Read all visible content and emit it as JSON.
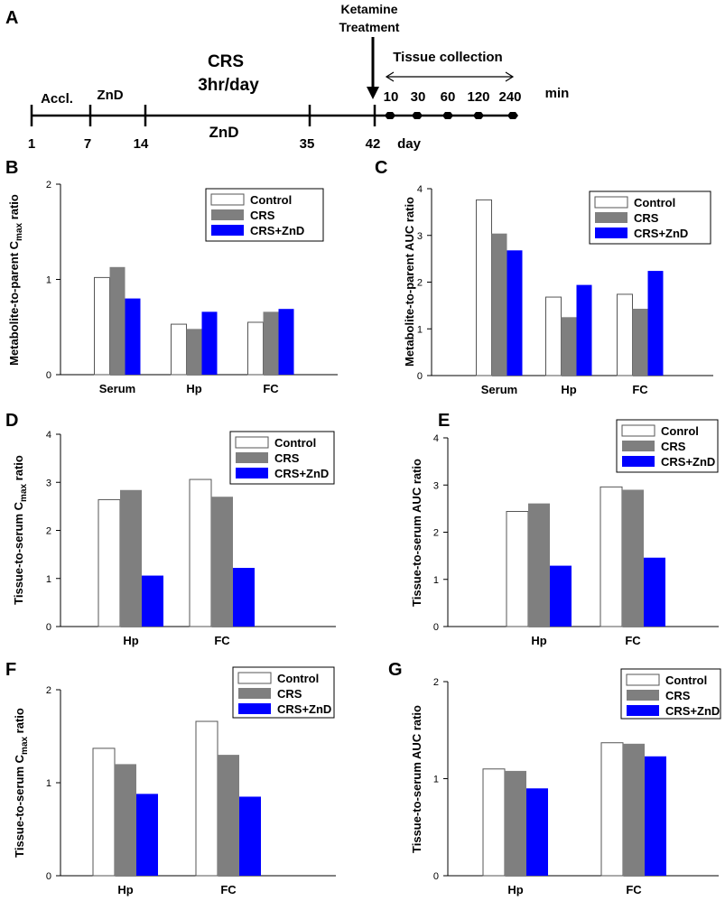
{
  "colors": {
    "control": "#ffffff",
    "crs": "#7f7f7f",
    "crs_znd": "#0000ff",
    "axis": "#000000"
  },
  "timeline": {
    "panel_label": "A",
    "days": [
      "1",
      "7",
      "14",
      "35",
      "42"
    ],
    "day_unit": "day",
    "accl_label": "Accl.",
    "znd_top_label": "ZnD",
    "crs_label_line1": "CRS",
    "crs_label_line2": "3hr/day",
    "znd_bottom_label": "ZnD",
    "ketamine_line1": "Ketamine",
    "ketamine_line2": "Treatment",
    "tissue_label": "Tissue collection",
    "times": [
      "10",
      "30",
      "60",
      "120",
      "240"
    ],
    "time_unit": "min"
  },
  "chart_data": [
    {
      "panel": "B",
      "type": "bar",
      "ylabel_pre": "Metabolite-to-parent C",
      "ylabel_sub": "max",
      "ylabel_post": " ratio",
      "ylim": [
        0,
        2
      ],
      "yticks": [
        "0",
        "1",
        "2"
      ],
      "categories": [
        "Serum",
        "Hp",
        "FC"
      ],
      "legend": [
        "Control",
        "CRS",
        "CRS+ZnD"
      ],
      "series": [
        {
          "name": "Control",
          "values": [
            1.02,
            0.53,
            0.55
          ]
        },
        {
          "name": "CRS",
          "values": [
            1.13,
            0.48,
            0.66
          ]
        },
        {
          "name": "CRS+ZnD",
          "values": [
            0.8,
            0.66,
            0.69
          ]
        }
      ]
    },
    {
      "panel": "C",
      "type": "bar",
      "ylabel_pre": "Metabolite-to-parent AUC ratio",
      "ylabel_sub": "",
      "ylabel_post": "",
      "ylim": [
        0,
        4
      ],
      "yticks": [
        "0",
        "1",
        "2",
        "3",
        "4"
      ],
      "categories": [
        "Serum",
        "Hp",
        "FC"
      ],
      "legend": [
        "Control",
        "CRS",
        "CRS+ZnD"
      ],
      "series": [
        {
          "name": "Control",
          "values": [
            3.76,
            1.68,
            1.74
          ]
        },
        {
          "name": "CRS",
          "values": [
            3.04,
            1.25,
            1.43
          ]
        },
        {
          "name": "CRS+ZnD",
          "values": [
            2.68,
            1.94,
            2.24
          ]
        }
      ]
    },
    {
      "panel": "D",
      "type": "bar",
      "ylabel_pre": "Tissue-to-serum C",
      "ylabel_sub": "max",
      "ylabel_post": " ratio",
      "ylim": [
        0,
        4
      ],
      "yticks": [
        "0",
        "1",
        "2",
        "3",
        "4"
      ],
      "categories": [
        "Hp",
        "FC"
      ],
      "legend": [
        "Control",
        "CRS",
        "CRS+ZnD"
      ],
      "series": [
        {
          "name": "Control",
          "values": [
            2.64,
            3.06
          ]
        },
        {
          "name": "CRS",
          "values": [
            2.84,
            2.7
          ]
        },
        {
          "name": "CRS+ZnD",
          "values": [
            1.06,
            1.22
          ]
        }
      ]
    },
    {
      "panel": "E",
      "type": "bar",
      "ylabel_pre": "Tissue-to-serum AUC ratio",
      "ylabel_sub": "",
      "ylabel_post": "",
      "ylim": [
        0,
        4
      ],
      "yticks": [
        "0",
        "1",
        "2",
        "3",
        "4"
      ],
      "categories": [
        "Hp",
        "FC"
      ],
      "legend": [
        "Conrol",
        "CRS",
        "CRS+ZnD"
      ],
      "series": [
        {
          "name": "Conrol",
          "values": [
            2.44,
            2.96
          ]
        },
        {
          "name": "CRS",
          "values": [
            2.61,
            2.9
          ]
        },
        {
          "name": "CRS+ZnD",
          "values": [
            1.29,
            1.46
          ]
        }
      ]
    },
    {
      "panel": "F",
      "type": "bar",
      "ylabel_pre": "Tissue-to-serum C",
      "ylabel_sub": "max",
      "ylabel_post": " ratio",
      "ylim": [
        0,
        2
      ],
      "yticks": [
        "0",
        "1",
        "2"
      ],
      "categories": [
        "Hp",
        "FC"
      ],
      "legend": [
        "Control",
        "CRS",
        "CRS+ZnD"
      ],
      "series": [
        {
          "name": "Control",
          "values": [
            1.37,
            1.66
          ]
        },
        {
          "name": "CRS",
          "values": [
            1.2,
            1.3
          ]
        },
        {
          "name": "CRS+ZnD",
          "values": [
            0.88,
            0.85
          ]
        }
      ]
    },
    {
      "panel": "G",
      "type": "bar",
      "ylabel_pre": "Tissue-to-serum AUC ratio",
      "ylabel_sub": "",
      "ylabel_post": "",
      "ylim": [
        0,
        2
      ],
      "yticks": [
        "0",
        "1",
        "2"
      ],
      "categories": [
        "Hp",
        "FC"
      ],
      "legend": [
        "Control",
        "CRS",
        "CRS+ZnD"
      ],
      "series": [
        {
          "name": "Control",
          "values": [
            1.1,
            1.37
          ]
        },
        {
          "name": "CRS",
          "values": [
            1.08,
            1.36
          ]
        },
        {
          "name": "CRS+ZnD",
          "values": [
            0.9,
            1.23
          ]
        }
      ]
    }
  ]
}
